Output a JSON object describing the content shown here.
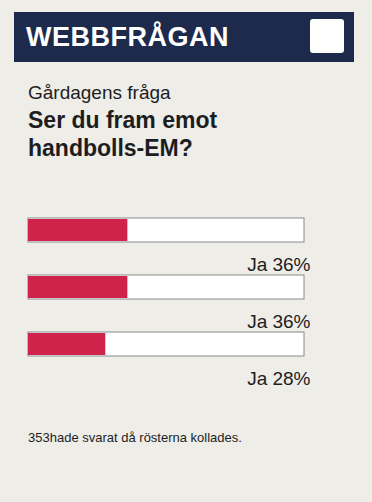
{
  "chart_data": {
    "type": "bar",
    "orientation": "horizontal",
    "header": "WEBBFRÅGAN",
    "subtitle": "Gårdagens fråga",
    "title": "Ser du fram emot handbolls-EM?",
    "categories": [
      "Ja",
      "Ja",
      "Ja"
    ],
    "values": [
      36,
      36,
      28
    ],
    "value_labels": [
      "36%",
      "36%",
      "28%"
    ],
    "data_labels": true,
    "color": "#d0234b",
    "xlim": [
      0,
      100
    ],
    "tick_labels": false,
    "caption": "353hade svarat då rösterna kollades."
  }
}
